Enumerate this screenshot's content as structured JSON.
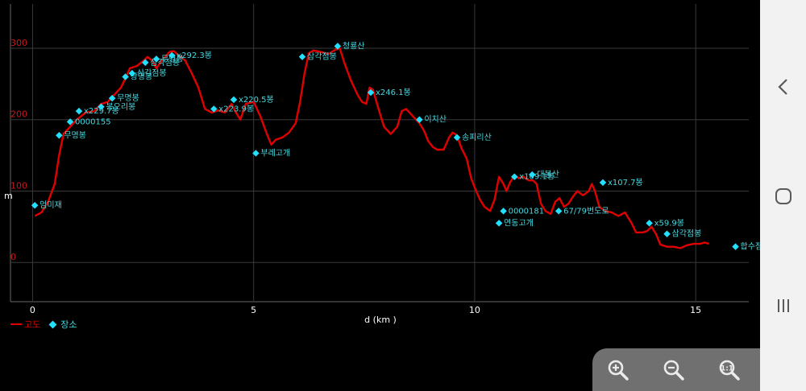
{
  "chart_data": {
    "type": "line",
    "xlabel": "d (km )",
    "ylabel": "m",
    "xlim": [
      -0.5,
      16.2
    ],
    "ylim": [
      -55,
      362
    ],
    "x_ticks": [
      0,
      5,
      10,
      15
    ],
    "y_ticks": [
      0,
      100,
      200,
      300
    ],
    "grid": true,
    "legend_position": "bottom-left",
    "series": [
      {
        "name": "고도",
        "color": "#e00000",
        "points": [
          [
            0.05,
            65
          ],
          [
            0.2,
            70
          ],
          [
            0.35,
            85
          ],
          [
            0.5,
            110
          ],
          [
            0.6,
            150
          ],
          [
            0.7,
            180
          ],
          [
            0.85,
            190
          ],
          [
            1.0,
            200
          ],
          [
            1.2,
            210
          ],
          [
            1.4,
            212
          ],
          [
            1.55,
            222
          ],
          [
            1.7,
            225
          ],
          [
            1.85,
            235
          ],
          [
            2.0,
            245
          ],
          [
            2.1,
            258
          ],
          [
            2.2,
            272
          ],
          [
            2.35,
            275
          ],
          [
            2.5,
            282
          ],
          [
            2.6,
            288
          ],
          [
            2.7,
            283
          ],
          [
            2.8,
            272
          ],
          [
            2.95,
            285
          ],
          [
            3.1,
            295
          ],
          [
            3.2,
            296
          ],
          [
            3.3,
            290
          ],
          [
            3.45,
            283
          ],
          [
            3.6,
            265
          ],
          [
            3.75,
            245
          ],
          [
            3.9,
            215
          ],
          [
            4.05,
            210
          ],
          [
            4.2,
            213
          ],
          [
            4.35,
            210
          ],
          [
            4.5,
            222
          ],
          [
            4.6,
            210
          ],
          [
            4.7,
            200
          ],
          [
            4.82,
            222
          ],
          [
            5.0,
            225
          ],
          [
            5.15,
            205
          ],
          [
            5.3,
            180
          ],
          [
            5.4,
            165
          ],
          [
            5.5,
            172
          ],
          [
            5.65,
            175
          ],
          [
            5.8,
            182
          ],
          [
            5.95,
            195
          ],
          [
            6.05,
            225
          ],
          [
            6.15,
            265
          ],
          [
            6.25,
            293
          ],
          [
            6.35,
            297
          ],
          [
            6.5,
            295
          ],
          [
            6.7,
            292
          ],
          [
            6.85,
            298
          ],
          [
            6.95,
            300
          ],
          [
            7.05,
            280
          ],
          [
            7.2,
            255
          ],
          [
            7.35,
            235
          ],
          [
            7.45,
            225
          ],
          [
            7.55,
            222
          ],
          [
            7.62,
            245
          ],
          [
            7.7,
            242
          ],
          [
            7.8,
            220
          ],
          [
            7.95,
            190
          ],
          [
            8.1,
            180
          ],
          [
            8.25,
            190
          ],
          [
            8.35,
            212
          ],
          [
            8.45,
            215
          ],
          [
            8.6,
            205
          ],
          [
            8.75,
            195
          ],
          [
            8.85,
            185
          ],
          [
            8.95,
            170
          ],
          [
            9.05,
            162
          ],
          [
            9.15,
            158
          ],
          [
            9.3,
            158
          ],
          [
            9.42,
            175
          ],
          [
            9.5,
            182
          ],
          [
            9.6,
            178
          ],
          [
            9.7,
            160
          ],
          [
            9.82,
            145
          ],
          [
            9.92,
            118
          ],
          [
            10.02,
            102
          ],
          [
            10.12,
            88
          ],
          [
            10.22,
            78
          ],
          [
            10.35,
            72
          ],
          [
            10.45,
            88
          ],
          [
            10.55,
            120
          ],
          [
            10.65,
            110
          ],
          [
            10.72,
            100
          ],
          [
            10.8,
            112
          ],
          [
            10.9,
            122
          ],
          [
            11.0,
            118
          ],
          [
            11.1,
            120
          ],
          [
            11.22,
            115
          ],
          [
            11.32,
            115
          ],
          [
            11.4,
            110
          ],
          [
            11.5,
            82
          ],
          [
            11.6,
            72
          ],
          [
            11.72,
            68
          ],
          [
            11.82,
            85
          ],
          [
            11.92,
            90
          ],
          [
            12.02,
            78
          ],
          [
            12.12,
            82
          ],
          [
            12.22,
            92
          ],
          [
            12.32,
            100
          ],
          [
            12.45,
            94
          ],
          [
            12.58,
            100
          ],
          [
            12.65,
            110
          ],
          [
            12.72,
            100
          ],
          [
            12.82,
            78
          ],
          [
            12.95,
            72
          ],
          [
            13.1,
            70
          ],
          [
            13.25,
            65
          ],
          [
            13.4,
            70
          ],
          [
            13.55,
            55
          ],
          [
            13.65,
            42
          ],
          [
            13.8,
            42
          ],
          [
            13.9,
            44
          ],
          [
            14.0,
            50
          ],
          [
            14.1,
            40
          ],
          [
            14.2,
            25
          ],
          [
            14.35,
            22
          ],
          [
            14.5,
            22
          ],
          [
            14.65,
            20
          ],
          [
            14.8,
            24
          ],
          [
            14.95,
            26
          ],
          [
            15.1,
            26
          ],
          [
            15.2,
            28
          ],
          [
            15.3,
            26
          ]
        ]
      }
    ],
    "markers": {
      "name": "장소",
      "color": "#22e0ff",
      "points": [
        {
          "x": 0.05,
          "y": 80,
          "label": "엄미재"
        },
        {
          "x": 0.6,
          "y": 178,
          "label": "무명봉"
        },
        {
          "x": 0.85,
          "y": 197,
          "label": "0000155"
        },
        {
          "x": 1.05,
          "y": 212,
          "label": "x229.7봉"
        },
        {
          "x": 1.55,
          "y": 218,
          "label": "봉오리봉"
        },
        {
          "x": 1.8,
          "y": 230,
          "label": "무명봉"
        },
        {
          "x": 2.1,
          "y": 260,
          "label": "광명봉"
        },
        {
          "x": 2.25,
          "y": 265,
          "label": "삼각점봉"
        },
        {
          "x": 2.55,
          "y": 280,
          "label": "삼각점봉"
        },
        {
          "x": 2.8,
          "y": 285,
          "label": "무명봉"
        },
        {
          "x": 3.15,
          "y": 290,
          "label": "x292.3봉"
        },
        {
          "x": 4.1,
          "y": 215,
          "label": "x223.9봉"
        },
        {
          "x": 4.55,
          "y": 228,
          "label": "x220.5봉"
        },
        {
          "x": 5.05,
          "y": 153,
          "label": "부레고개"
        },
        {
          "x": 6.1,
          "y": 288,
          "label": "삼각점봉"
        },
        {
          "x": 6.9,
          "y": 303,
          "label": "청룡산"
        },
        {
          "x": 7.65,
          "y": 238,
          "label": "x246.1봉"
        },
        {
          "x": 8.75,
          "y": 200,
          "label": "이치산"
        },
        {
          "x": 9.6,
          "y": 175,
          "label": "송피리산"
        },
        {
          "x": 10.55,
          "y": 55,
          "label": "연동고개"
        },
        {
          "x": 10.65,
          "y": 72,
          "label": "0000181"
        },
        {
          "x": 10.9,
          "y": 120,
          "label": "x109.1봉"
        },
        {
          "x": 11.3,
          "y": 123,
          "label": "대봉산"
        },
        {
          "x": 11.9,
          "y": 72,
          "label": "67/79번도로"
        },
        {
          "x": 12.9,
          "y": 112,
          "label": "x107.7봉"
        },
        {
          "x": 13.95,
          "y": 55,
          "label": "x59.9봉"
        },
        {
          "x": 14.35,
          "y": 40,
          "label": "삼각점봉"
        },
        {
          "x": 15.9,
          "y": 22,
          "label": "합수점"
        }
      ]
    }
  },
  "controls": {
    "zoom_in": "zoom-in-icon",
    "zoom_out": "zoom-out-icon",
    "zoom_reset": "zoom-reset-icon"
  },
  "navigation": {
    "back": "back-icon",
    "home": "home-icon",
    "recents": "recents-icon"
  }
}
